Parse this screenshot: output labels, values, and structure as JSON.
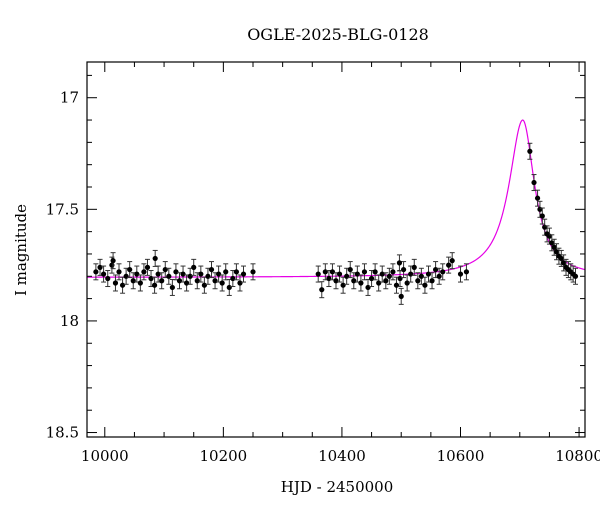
{
  "chart_data": {
    "type": "scatter",
    "title": "OGLE-2025-BLG-0128",
    "xlabel": "HJD - 2450000",
    "ylabel": "I magnitude",
    "xlim": [
      9970,
      10810
    ],
    "ylim": [
      18.52,
      16.84
    ],
    "y_inverted": true,
    "x_ticks": [
      10000,
      10200,
      10400,
      10600,
      10800
    ],
    "y_ticks": [
      17,
      17.5,
      18,
      18.5
    ],
    "x_tick_labels": [
      "10000",
      "10200",
      "10400",
      "10600",
      "10800"
    ],
    "y_tick_labels": [
      "17",
      "17.5",
      "18",
      "18.5"
    ],
    "grid": false,
    "model": {
      "baseline": 17.805,
      "peak_time": 10705,
      "peak_mag": 17.1,
      "color": "#e600e6"
    },
    "series": [
      {
        "points": [
          [
            9985,
            17.78
          ],
          [
            9992,
            17.76
          ],
          [
            9998,
            17.79
          ],
          [
            10005,
            17.81
          ],
          [
            10012,
            17.75
          ],
          [
            10018,
            17.83
          ],
          [
            10024,
            17.78
          ],
          [
            10030,
            17.84
          ],
          [
            10036,
            17.8
          ],
          [
            10042,
            17.77
          ],
          [
            10048,
            17.82
          ],
          [
            10054,
            17.79
          ],
          [
            10060,
            17.83
          ],
          [
            10066,
            17.78
          ],
          [
            10072,
            17.76
          ],
          [
            10078,
            17.81
          ],
          [
            10084,
            17.84
          ],
          [
            10090,
            17.79
          ],
          [
            10096,
            17.82
          ],
          [
            10102,
            17.77
          ],
          [
            10108,
            17.8
          ],
          [
            10114,
            17.85
          ],
          [
            10120,
            17.78
          ],
          [
            10126,
            17.82
          ],
          [
            10132,
            17.79
          ],
          [
            10138,
            17.83
          ],
          [
            10144,
            17.8
          ],
          [
            10150,
            17.76
          ],
          [
            10156,
            17.82
          ],
          [
            10162,
            17.79
          ],
          [
            10168,
            17.84
          ],
          [
            10174,
            17.8
          ],
          [
            10180,
            17.77
          ],
          [
            10186,
            17.82
          ],
          [
            10192,
            17.79
          ],
          [
            10198,
            17.83
          ],
          [
            10204,
            17.78
          ],
          [
            10210,
            17.85
          ],
          [
            10216,
            17.81
          ],
          [
            10222,
            17.78
          ],
          [
            10228,
            17.83
          ],
          [
            10234,
            17.79
          ],
          [
            10250,
            17.78
          ],
          [
            10085,
            17.72
          ],
          [
            10014,
            17.73
          ],
          [
            10360,
            17.79
          ],
          [
            10366,
            17.86
          ],
          [
            10372,
            17.78
          ],
          [
            10378,
            17.81
          ],
          [
            10384,
            17.78
          ],
          [
            10390,
            17.82
          ],
          [
            10396,
            17.79
          ],
          [
            10402,
            17.84
          ],
          [
            10408,
            17.8
          ],
          [
            10414,
            17.77
          ],
          [
            10420,
            17.82
          ],
          [
            10426,
            17.79
          ],
          [
            10432,
            17.83
          ],
          [
            10438,
            17.78
          ],
          [
            10444,
            17.85
          ],
          [
            10450,
            17.81
          ],
          [
            10456,
            17.78
          ],
          [
            10462,
            17.83
          ],
          [
            10468,
            17.79
          ],
          [
            10474,
            17.82
          ],
          [
            10480,
            17.8
          ],
          [
            10486,
            17.78
          ],
          [
            10492,
            17.84
          ],
          [
            10498,
            17.81
          ],
          [
            10504,
            17.77
          ],
          [
            10510,
            17.83
          ],
          [
            10516,
            17.79
          ],
          [
            10522,
            17.76
          ],
          [
            10528,
            17.82
          ],
          [
            10534,
            17.8
          ],
          [
            10540,
            17.84
          ],
          [
            10546,
            17.79
          ],
          [
            10552,
            17.82
          ],
          [
            10558,
            17.77
          ],
          [
            10564,
            17.8
          ],
          [
            10570,
            17.78
          ],
          [
            10580,
            17.75
          ],
          [
            10586,
            17.73
          ],
          [
            10600,
            17.79
          ],
          [
            10610,
            17.78
          ],
          [
            10497,
            17.74
          ],
          [
            10500,
            17.89
          ],
          [
            10717,
            17.24
          ],
          [
            10724,
            17.38
          ],
          [
            10730,
            17.45
          ],
          [
            10734,
            17.5
          ],
          [
            10738,
            17.53
          ],
          [
            10742,
            17.58
          ],
          [
            10746,
            17.61
          ],
          [
            10750,
            17.62
          ],
          [
            10754,
            17.65
          ],
          [
            10758,
            17.67
          ],
          [
            10762,
            17.69
          ],
          [
            10766,
            17.71
          ],
          [
            10770,
            17.72
          ],
          [
            10774,
            17.74
          ],
          [
            10778,
            17.76
          ],
          [
            10782,
            17.77
          ],
          [
            10786,
            17.78
          ],
          [
            10790,
            17.79
          ],
          [
            10794,
            17.8
          ]
        ]
      }
    ]
  }
}
